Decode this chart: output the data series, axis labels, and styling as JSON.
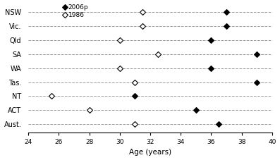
{
  "categories": [
    "NSW",
    "Vic.",
    "Qld",
    "SA",
    "WA",
    "Tas.",
    "NT",
    "ACT",
    "Aust."
  ],
  "values_2006p": [
    37.0,
    37.0,
    36.0,
    39.0,
    36.0,
    39.0,
    31.0,
    35.0,
    36.5
  ],
  "values_1986": [
    31.5,
    31.5,
    30.0,
    32.5,
    30.0,
    31.0,
    25.5,
    28.0,
    31.0
  ],
  "xlabel": "Age (years)",
  "xlim": [
    24,
    40
  ],
  "xticks": [
    24,
    26,
    28,
    30,
    32,
    34,
    36,
    38,
    40
  ],
  "legend_2006p": "2006p",
  "legend_1986": "1986",
  "color_filled": "#000000",
  "color_open": "#000000",
  "bg_color": "#ffffff",
  "grid_color": "#999999",
  "marker_size": 4,
  "figwidth": 3.97,
  "figheight": 2.27,
  "dpi": 100
}
